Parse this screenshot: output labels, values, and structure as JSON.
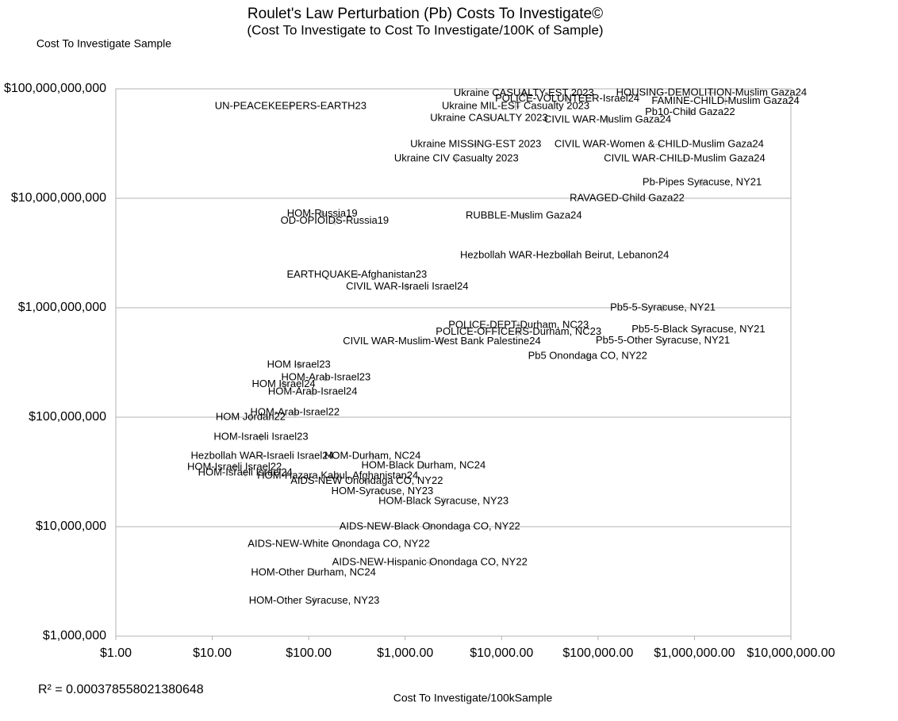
{
  "chart_data": {
    "type": "scatter",
    "title": "Roulet's Law Perturbation (Pb) Costs To Investigate©",
    "subtitle": "(Cost To Investigate to Cost To Investigate/100K of Sample)",
    "y_label": "Cost To Investigate Sample",
    "x_label": "Cost To Investigate/100kSample",
    "annotation": "R² = 0.000378558021380648",
    "xlog": true,
    "ylog": true,
    "grid": true,
    "xlim": [
      1,
      10000000
    ],
    "ylim": [
      1000000,
      100000000000
    ],
    "xticks": [
      {
        "value": 1,
        "label": "$1.00"
      },
      {
        "value": 10,
        "label": "$10.00"
      },
      {
        "value": 100,
        "label": "$100.00"
      },
      {
        "value": 1000,
        "label": "$1,000.00"
      },
      {
        "value": 10000,
        "label": "$10,000.00"
      },
      {
        "value": 100000,
        "label": "$100,000.00"
      },
      {
        "value": 1000000,
        "label": "$1,000,000.00"
      },
      {
        "value": 10000000,
        "label": "$10,000,000.00"
      }
    ],
    "yticks": [
      {
        "value": 1000000,
        "label": "$1,000,000"
      },
      {
        "value": 10000000,
        "label": "$10,000,000"
      },
      {
        "value": 100000000,
        "label": "$100,000,000"
      },
      {
        "value": 1000000000,
        "label": "$1,000,000,000"
      },
      {
        "value": 10000000000,
        "label": "$10,000,000,000"
      },
      {
        "value": 100000000000,
        "label": "$100,000,000,000"
      }
    ],
    "series": [
      {
        "color": "#c8c8c8",
        "labels": [
          "UN-PEACEKEEPERS-EARTH23",
          "Ukraine CASUALTY-EST 2023",
          "HOUSING-DEMOLITION-Muslim Gaza24",
          "POLICE-VOLUNTEER-Israel24",
          "FAMINE-CHILD-Muslim Gaza24",
          "Ukraine MIL-EST Casualty 2023",
          "Pb10-Child Gaza22",
          "Ukraine CASUALTY 2023",
          "CIVIL WAR-Muslim Gaza24",
          "Ukraine MISSING-EST 2023",
          "CIVIL WAR-Women & CHILD-Muslim Gaza24",
          "Ukraine CIV Casualty 2023",
          "CIVIL WAR-CHILD-Muslim Gaza24",
          "Pb-Pipes Syracuse, NY21",
          "RAVAGED-Child Gaza22",
          "HOM-Russia19",
          "OD-OPIOIDS-Russia19",
          "RUBBLE-Muslim Gaza24",
          "Hezbollah WAR-Hezbollah Beirut, Lebanon24",
          "EARTHQUAKE-Afghanistan23",
          "CIVIL WAR-Israeli Israel24",
          "Pb5-5-Syracuse, NY21",
          "POLICE-DEPT-Durham, NC23",
          "Pb5-5-Black Syracuse, NY21",
          "POLICE-OFFICERS-Durham, NC23",
          "Pb5-5-Other Syracuse, NY21",
          "CIVIL WAR-Muslim-West Bank Palestine24",
          "Pb5 Onondaga CO, NY22",
          "HOM Israel23",
          "HOM-Arab-Israel23",
          "HOM Israel24",
          "HOM-Arab-Israel24",
          "HOM-Arab-Israel22",
          "HOM Jordan22",
          "HOM-Israeli Israel23",
          "Hezbollah WAR-Israeli Israel24",
          "HOM-Durham, NC24",
          "HOM-Israeli Israel22",
          "HOM-Black Durham, NC24",
          "HOM-Israeli Israel24",
          "HOM-Hazara Kabul, Afghanistan24",
          "AIDS-NEW Onondaga CO, NY22",
          "HOM-Syracuse, NY23",
          "HOM-Black Syracuse, NY23",
          "AIDS-NEW-Black Onondaga CO, NY22",
          "AIDS-NEW-White Onondaga CO, NY22",
          "AIDS-NEW-Hispanic Onondaga CO, NY22",
          "HOM-Other Durham, NC24",
          "HOM-Other Syracuse, NY23"
        ],
        "x": [
          65,
          17000,
          1500000,
          48000,
          2100000,
          14000,
          900000,
          7400,
          126000,
          5400,
          430000,
          3400,
          790000,
          1200000,
          200000,
          138,
          186,
          17000,
          45000,
          316,
          1050,
          470000,
          15000,
          1100000,
          15000,
          470000,
          2400,
          78000,
          79,
          151,
          55,
          110,
          72,
          25,
          32,
          33,
          460,
          17,
          1550,
          22,
          200,
          400,
          580,
          2500,
          1800,
          205,
          1800,
          112,
          114
        ],
        "values": [
          69000000000,
          91000000000,
          92000000000,
          81000000000,
          77000000000,
          69000000000,
          61000000000,
          54000000000,
          52000000000,
          31000000000,
          31000000000,
          23000000000,
          23000000000,
          14000000000,
          10000000000,
          7200000000,
          6200000000,
          6900000000,
          3000000000,
          2000000000,
          1550000000,
          1000000000,
          690000000,
          630000000,
          600000000,
          500000000,
          490000000,
          360000000,
          300000000,
          230000000,
          200000000,
          170000000,
          110000000,
          100000000,
          66000000,
          44000000,
          44000000,
          35000000,
          36000000,
          31000000,
          29000000,
          26000000,
          21000000,
          17000000,
          10000000,
          6900000,
          4700000,
          3800000,
          2100000
        ]
      }
    ]
  }
}
